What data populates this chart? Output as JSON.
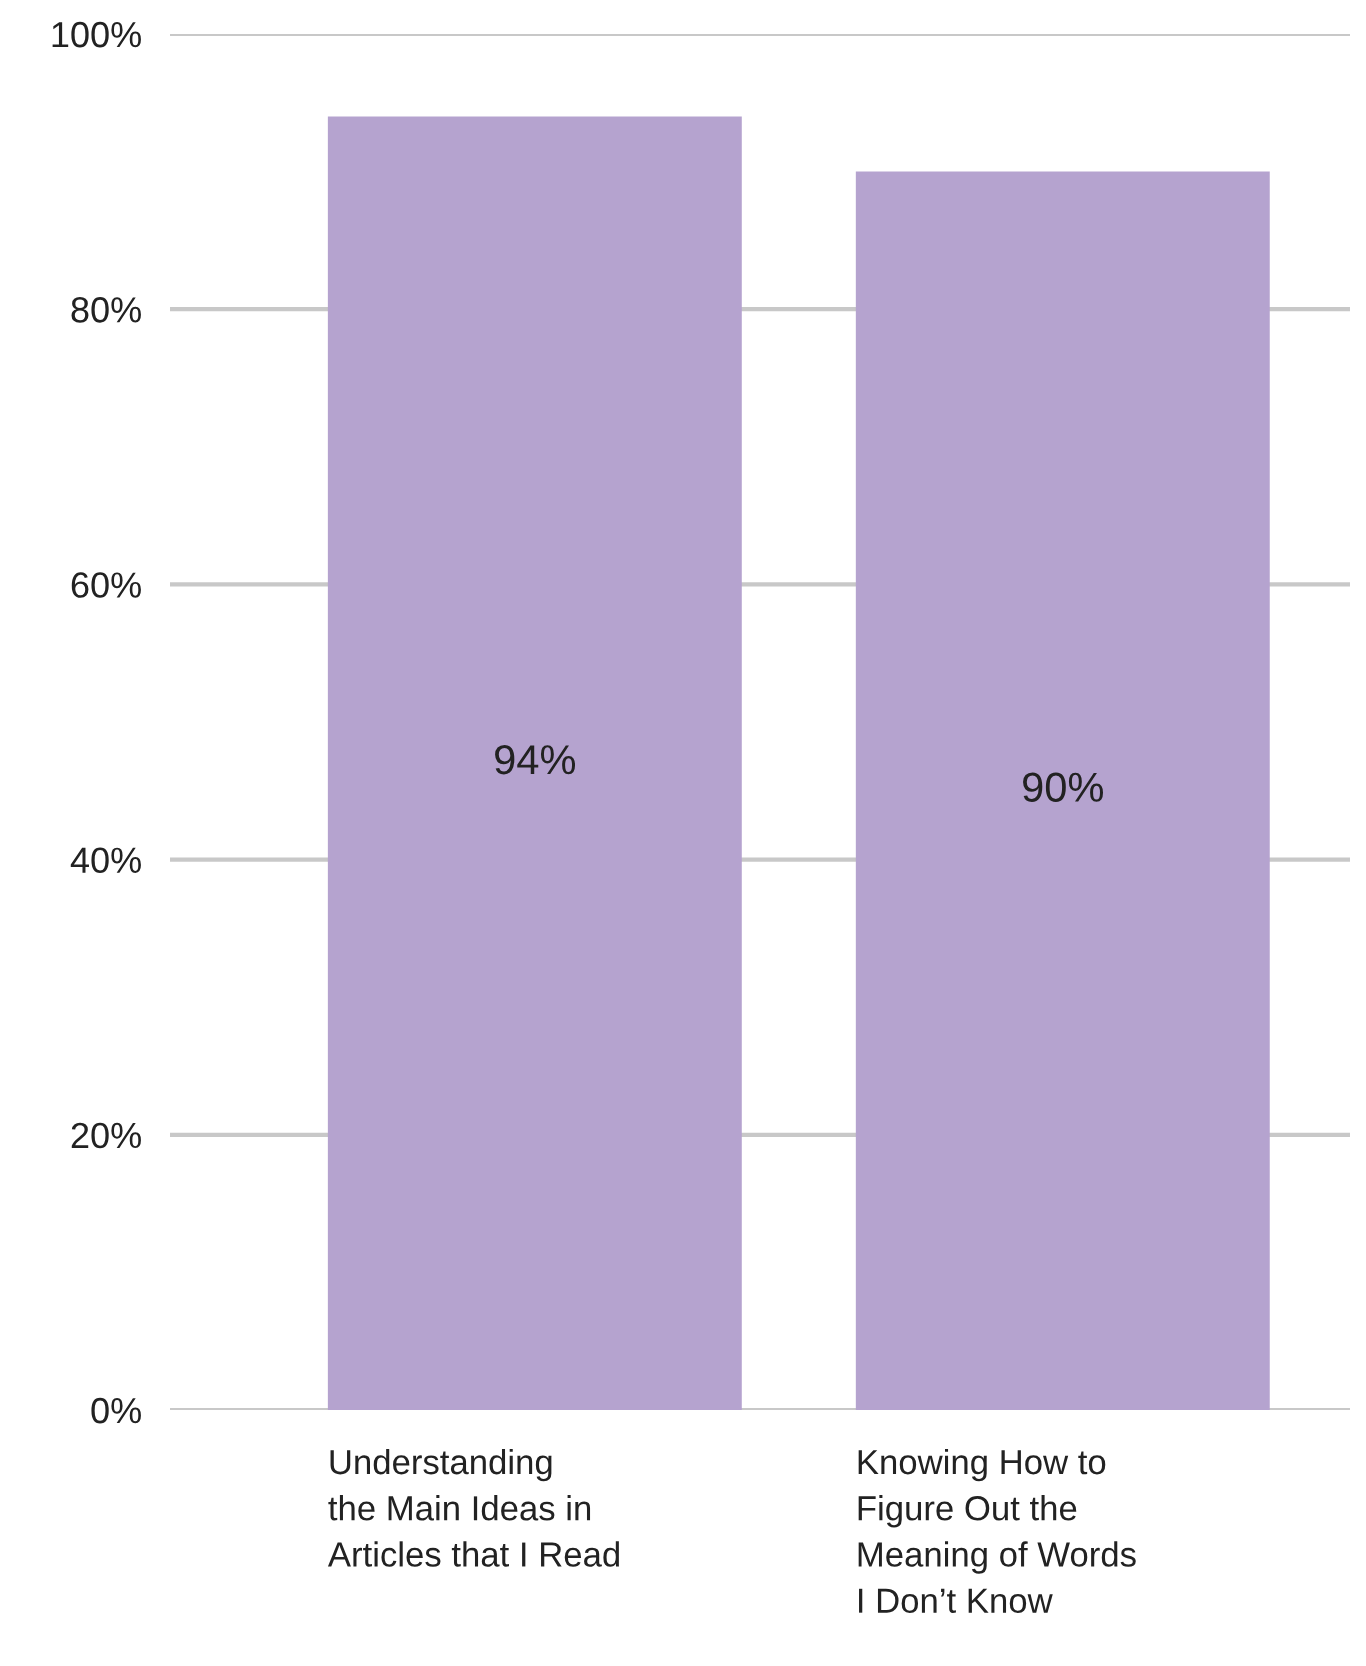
{
  "chart_data": {
    "type": "bar",
    "categories": [
      "Understanding\nthe Main Ideas in\nArticles that I Read",
      "Knowing How to\nFigure Out the\nMeaning of Words\nI Don’t Know"
    ],
    "values": [
      94,
      90
    ],
    "value_labels": [
      "94%",
      "90%"
    ],
    "color": "#b5a3cf",
    "ylim": [
      0,
      100
    ],
    "yticks": [
      {
        "value": 0,
        "label": "0%"
      },
      {
        "value": 20,
        "label": "20%"
      },
      {
        "value": 40,
        "label": "40%"
      },
      {
        "value": 60,
        "label": "60%"
      },
      {
        "value": 80,
        "label": "80%"
      },
      {
        "value": 100,
        "label": "100%"
      }
    ],
    "grid": "y"
  }
}
